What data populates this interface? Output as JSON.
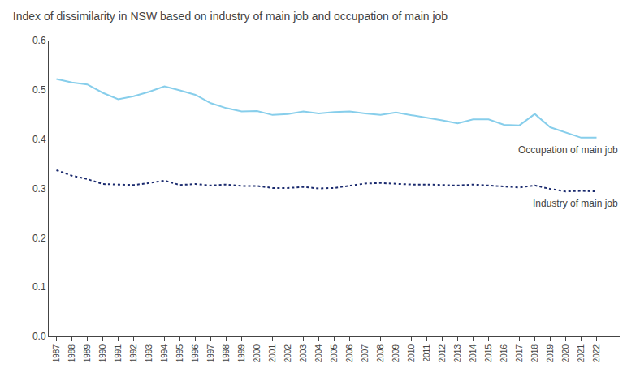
{
  "chart_data": {
    "type": "line",
    "title": "Index of dissimilarity in NSW based on industry of main job and occupation of main job",
    "x": [
      1987,
      1988,
      1989,
      1990,
      1991,
      1992,
      1993,
      1994,
      1995,
      1996,
      1997,
      1998,
      1999,
      2000,
      2001,
      2002,
      2003,
      2004,
      2005,
      2006,
      2007,
      2008,
      2009,
      2010,
      2011,
      2012,
      2013,
      2014,
      2015,
      2016,
      2017,
      2018,
      2019,
      2020,
      2021,
      2022
    ],
    "series": [
      {
        "name": "Occupation of main job",
        "color": "#87ceeb",
        "line_style": "solid",
        "values": [
          0.522,
          0.515,
          0.511,
          0.494,
          0.481,
          0.487,
          0.496,
          0.507,
          0.499,
          0.49,
          0.473,
          0.463,
          0.456,
          0.457,
          0.449,
          0.451,
          0.456,
          0.452,
          0.455,
          0.456,
          0.452,
          0.449,
          0.454,
          0.449,
          0.444,
          0.438,
          0.432,
          0.44,
          0.44,
          0.429,
          0.428,
          0.451,
          0.424,
          0.413,
          0.403,
          0.403
        ]
      },
      {
        "name": "Industry of main job",
        "color": "#1a2a6e",
        "line_style": "dotted",
        "values": [
          0.337,
          0.326,
          0.319,
          0.309,
          0.308,
          0.307,
          0.311,
          0.316,
          0.307,
          0.309,
          0.306,
          0.308,
          0.305,
          0.305,
          0.301,
          0.301,
          0.303,
          0.3,
          0.301,
          0.306,
          0.31,
          0.311,
          0.309,
          0.308,
          0.308,
          0.307,
          0.306,
          0.308,
          0.306,
          0.304,
          0.302,
          0.306,
          0.299,
          0.294,
          0.295,
          0.294
        ]
      }
    ],
    "xlim": [
      1986.5,
      2023.5
    ],
    "xticks": [
      1987,
      1988,
      1989,
      1990,
      1991,
      1992,
      1993,
      1994,
      1995,
      1996,
      1997,
      1998,
      1999,
      2000,
      2001,
      2002,
      2003,
      2004,
      2005,
      2006,
      2007,
      2008,
      2009,
      2010,
      2011,
      2012,
      2013,
      2014,
      2015,
      2016,
      2017,
      2018,
      2019,
      2020,
      2021,
      2022
    ],
    "ylim": [
      0,
      0.6
    ],
    "yticks": [
      {
        "value": 0,
        "label": "0.0"
      },
      {
        "value": 0.1,
        "label": "0.1"
      },
      {
        "value": 0.2,
        "label": "0.2"
      },
      {
        "value": 0.3,
        "label": "0.3"
      },
      {
        "value": 0.4,
        "label": "0.4"
      },
      {
        "value": 0.5,
        "label": "0.5"
      },
      {
        "value": 0.6,
        "label": "0.6"
      }
    ],
    "grid": false
  }
}
